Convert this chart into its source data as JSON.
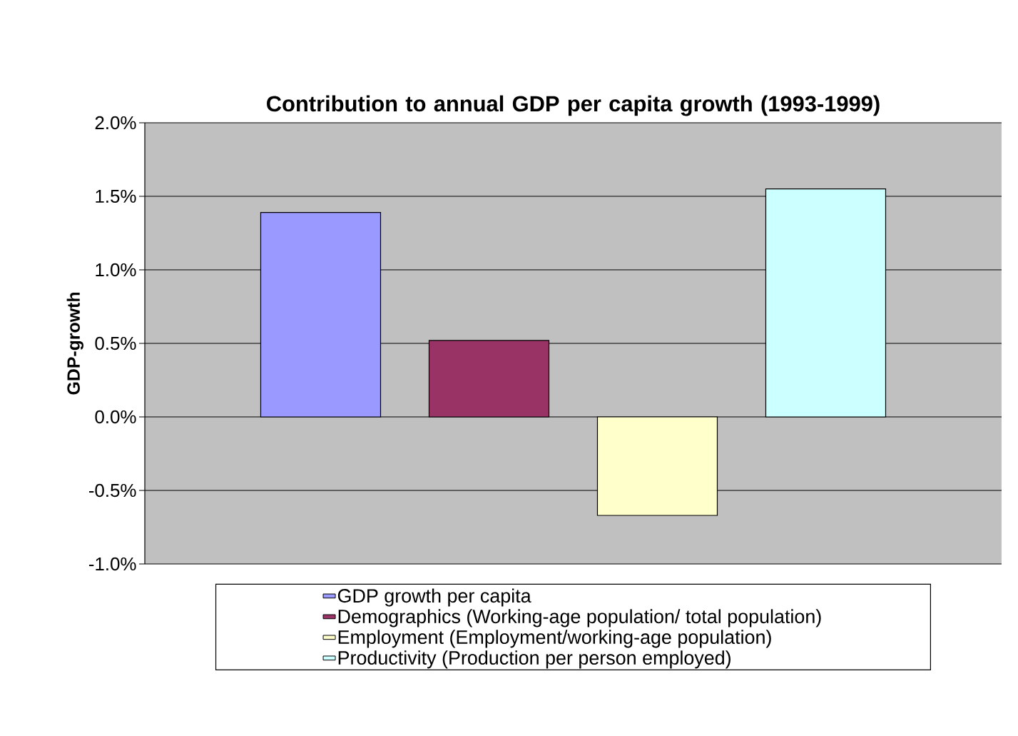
{
  "chart_data": {
    "type": "bar",
    "title": "Contribution to annual GDP per capita growth (1993-1999)",
    "ylabel": "GDP-growth",
    "categories": [
      null
    ],
    "series": [
      {
        "name": "GDP growth per capita",
        "color": "#9999ff",
        "values": [
          1.39
        ]
      },
      {
        "name": "Demographics (Working-age population/ total population)",
        "color": "#993366",
        "values": [
          0.52
        ]
      },
      {
        "name": "Employment (Employment/working-age population)",
        "color": "#ffffcc",
        "values": [
          -0.67
        ]
      },
      {
        "name": "Productivity (Production per person employed)",
        "color": "#ccffff",
        "values": [
          1.55
        ]
      }
    ],
    "ylim": [
      -1,
      2
    ],
    "yticks": [
      {
        "value": -1,
        "label": "-1.0%"
      },
      {
        "value": -0.5,
        "label": "-0.5%"
      },
      {
        "value": 0,
        "label": "0.0%"
      },
      {
        "value": 0.5,
        "label": "0.5%"
      },
      {
        "value": 1,
        "label": "1.0%"
      },
      {
        "value": 1.5,
        "label": "1.5%"
      },
      {
        "value": 2,
        "label": "2.0%"
      }
    ],
    "grid": "y",
    "legend": "bottom"
  }
}
